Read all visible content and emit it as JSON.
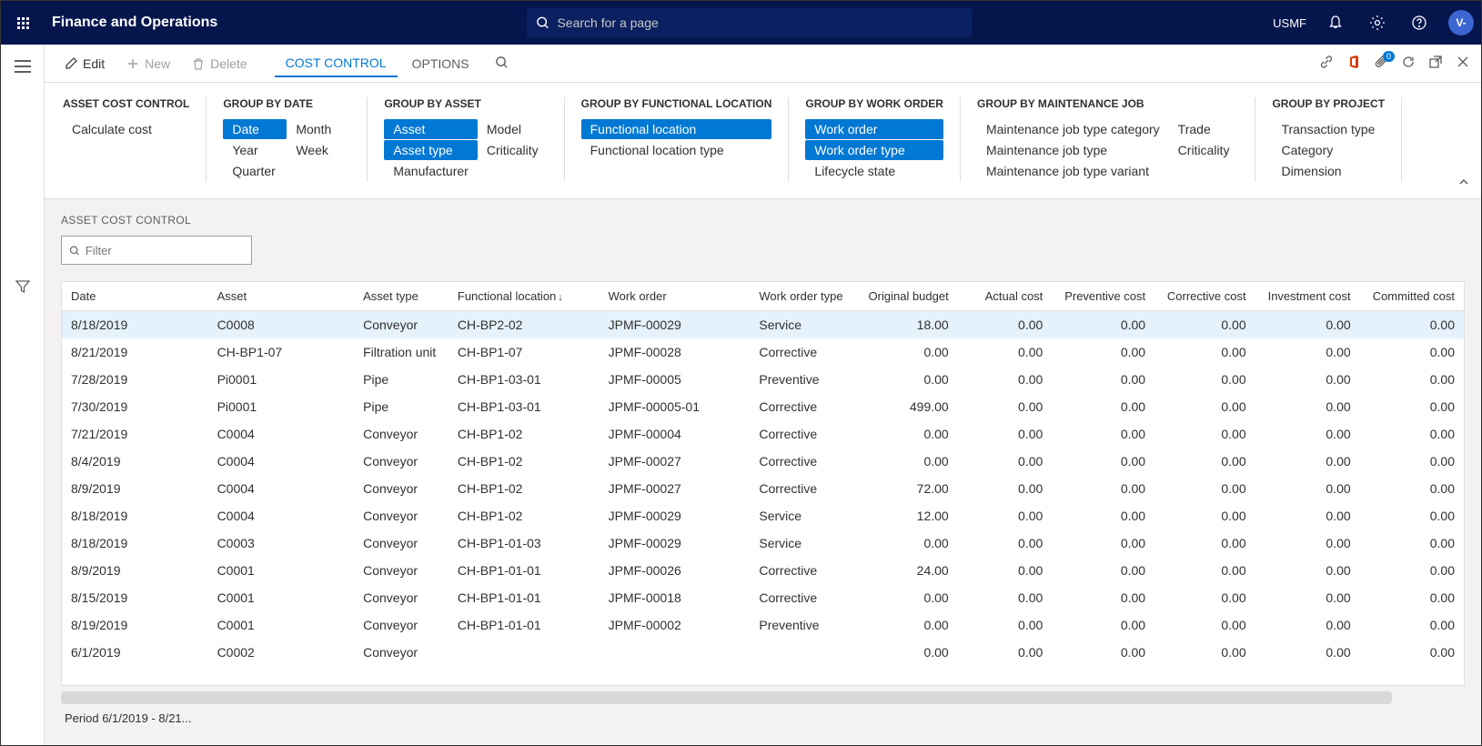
{
  "topbar": {
    "app_title": "Finance and Operations",
    "search_placeholder": "Search for a page",
    "company": "USMF",
    "avatar_initial": "V-"
  },
  "action_bar": {
    "edit": "Edit",
    "new": "New",
    "delete": "Delete",
    "tabs": {
      "cost_control": "COST CONTROL",
      "options": "OPTIONS"
    },
    "badge_count": "0"
  },
  "groups": {
    "asset_cost_control": {
      "title": "ASSET COST CONTROL",
      "calculate": "Calculate cost"
    },
    "by_date": {
      "title": "GROUP BY DATE",
      "date": "Date",
      "month": "Month",
      "year": "Year",
      "week": "Week",
      "quarter": "Quarter"
    },
    "by_asset": {
      "title": "GROUP BY ASSET",
      "asset": "Asset",
      "model": "Model",
      "asset_type": "Asset type",
      "criticality": "Criticality",
      "manufacturer": "Manufacturer"
    },
    "by_fl": {
      "title": "GROUP BY FUNCTIONAL LOCATION",
      "fl": "Functional location",
      "fl_type": "Functional location type"
    },
    "by_wo": {
      "title": "GROUP BY WORK ORDER",
      "wo": "Work order",
      "wo_type": "Work order type",
      "lifecycle": "Lifecycle state"
    },
    "by_mj": {
      "title": "GROUP BY MAINTENANCE JOB",
      "cat": "Maintenance job type category",
      "trade": "Trade",
      "type": "Maintenance job type",
      "crit": "Criticality",
      "variant": "Maintenance job type variant"
    },
    "by_proj": {
      "title": "GROUP BY PROJECT",
      "trans": "Transaction type",
      "category": "Category",
      "dimension": "Dimension"
    }
  },
  "grid": {
    "title": "ASSET COST CONTROL",
    "filter_placeholder": "Filter",
    "columns": {
      "date": "Date",
      "asset": "Asset",
      "asset_type": "Asset type",
      "fl": "Functional location",
      "wo": "Work order",
      "wo_type": "Work order type",
      "orig_budget": "Original budget",
      "actual": "Actual cost",
      "preventive": "Preventive cost",
      "corrective": "Corrective cost",
      "investment": "Investment cost",
      "committed": "Committed cost"
    },
    "rows": [
      {
        "date": "8/18/2019",
        "asset": "C0008",
        "asset_type": "Conveyor",
        "fl": "CH-BP2-02",
        "wo": "JPMF-00029",
        "wo_type": "Service",
        "orig_budget": "18.00",
        "actual": "0.00",
        "preventive": "0.00",
        "corrective": "0.00",
        "investment": "0.00",
        "committed": "0.00"
      },
      {
        "date": "8/21/2019",
        "asset": "CH-BP1-07",
        "asset_type": "Filtration unit",
        "fl": "CH-BP1-07",
        "wo": "JPMF-00028",
        "wo_type": "Corrective",
        "orig_budget": "0.00",
        "actual": "0.00",
        "preventive": "0.00",
        "corrective": "0.00",
        "investment": "0.00",
        "committed": "0.00"
      },
      {
        "date": "7/28/2019",
        "asset": "Pi0001",
        "asset_type": "Pipe",
        "fl": "CH-BP1-03-01",
        "wo": "JPMF-00005",
        "wo_type": "Preventive",
        "orig_budget": "0.00",
        "actual": "0.00",
        "preventive": "0.00",
        "corrective": "0.00",
        "investment": "0.00",
        "committed": "0.00"
      },
      {
        "date": "7/30/2019",
        "asset": "Pi0001",
        "asset_type": "Pipe",
        "fl": "CH-BP1-03-01",
        "wo": "JPMF-00005-01",
        "wo_type": "Corrective",
        "orig_budget": "499.00",
        "actual": "0.00",
        "preventive": "0.00",
        "corrective": "0.00",
        "investment": "0.00",
        "committed": "0.00"
      },
      {
        "date": "7/21/2019",
        "asset": "C0004",
        "asset_type": "Conveyor",
        "fl": "CH-BP1-02",
        "wo": "JPMF-00004",
        "wo_type": "Corrective",
        "orig_budget": "0.00",
        "actual": "0.00",
        "preventive": "0.00",
        "corrective": "0.00",
        "investment": "0.00",
        "committed": "0.00"
      },
      {
        "date": "8/4/2019",
        "asset": "C0004",
        "asset_type": "Conveyor",
        "fl": "CH-BP1-02",
        "wo": "JPMF-00027",
        "wo_type": "Corrective",
        "orig_budget": "0.00",
        "actual": "0.00",
        "preventive": "0.00",
        "corrective": "0.00",
        "investment": "0.00",
        "committed": "0.00"
      },
      {
        "date": "8/9/2019",
        "asset": "C0004",
        "asset_type": "Conveyor",
        "fl": "CH-BP1-02",
        "wo": "JPMF-00027",
        "wo_type": "Corrective",
        "orig_budget": "72.00",
        "actual": "0.00",
        "preventive": "0.00",
        "corrective": "0.00",
        "investment": "0.00",
        "committed": "0.00"
      },
      {
        "date": "8/18/2019",
        "asset": "C0004",
        "asset_type": "Conveyor",
        "fl": "CH-BP1-02",
        "wo": "JPMF-00029",
        "wo_type": "Service",
        "orig_budget": "12.00",
        "actual": "0.00",
        "preventive": "0.00",
        "corrective": "0.00",
        "investment": "0.00",
        "committed": "0.00"
      },
      {
        "date": "8/18/2019",
        "asset": "C0003",
        "asset_type": "Conveyor",
        "fl": "CH-BP1-01-03",
        "wo": "JPMF-00029",
        "wo_type": "Service",
        "orig_budget": "0.00",
        "actual": "0.00",
        "preventive": "0.00",
        "corrective": "0.00",
        "investment": "0.00",
        "committed": "0.00"
      },
      {
        "date": "8/9/2019",
        "asset": "C0001",
        "asset_type": "Conveyor",
        "fl": "CH-BP1-01-01",
        "wo": "JPMF-00026",
        "wo_type": "Corrective",
        "orig_budget": "24.00",
        "actual": "0.00",
        "preventive": "0.00",
        "corrective": "0.00",
        "investment": "0.00",
        "committed": "0.00"
      },
      {
        "date": "8/15/2019",
        "asset": "C0001",
        "asset_type": "Conveyor",
        "fl": "CH-BP1-01-01",
        "wo": "JPMF-00018",
        "wo_type": "Corrective",
        "orig_budget": "0.00",
        "actual": "0.00",
        "preventive": "0.00",
        "corrective": "0.00",
        "investment": "0.00",
        "committed": "0.00"
      },
      {
        "date": "8/19/2019",
        "asset": "C0001",
        "asset_type": "Conveyor",
        "fl": "CH-BP1-01-01",
        "wo": "JPMF-00002",
        "wo_type": "Preventive",
        "orig_budget": "0.00",
        "actual": "0.00",
        "preventive": "0.00",
        "corrective": "0.00",
        "investment": "0.00",
        "committed": "0.00"
      },
      {
        "date": "6/1/2019",
        "asset": "C0002",
        "asset_type": "Conveyor",
        "fl": "",
        "wo": "",
        "wo_type": "",
        "orig_budget": "0.00",
        "actual": "0.00",
        "preventive": "0.00",
        "corrective": "0.00",
        "investment": "0.00",
        "committed": "0.00"
      }
    ]
  },
  "footer": {
    "period": "Period 6/1/2019 - 8/21..."
  }
}
